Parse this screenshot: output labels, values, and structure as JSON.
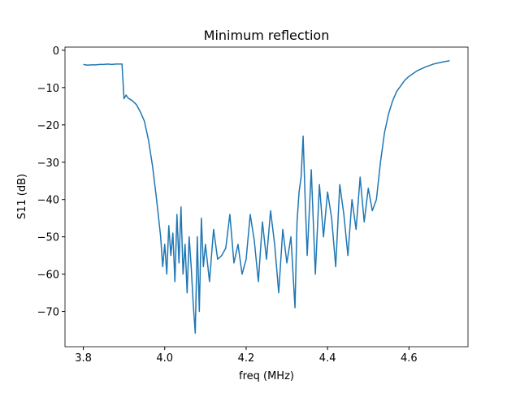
{
  "chart_data": {
    "type": "line",
    "title": "Minimum reflection",
    "x_label": "freq (MHz)",
    "y_label": "S11 (dB)",
    "xlim": [
      3.755,
      4.745
    ],
    "ylim": [
      -79.45,
      0.85
    ],
    "xticks": [
      3.8,
      {
        "value": 4.0,
        "label": "4.0"
      },
      4.2,
      4.4,
      4.6
    ],
    "yticks": [
      0,
      {
        "value": -10,
        "label": "−10"
      },
      {
        "value": -20,
        "label": "−20"
      },
      {
        "value": -30,
        "label": "−30"
      },
      {
        "value": -40,
        "label": "−40"
      },
      {
        "value": -50,
        "label": "−50"
      },
      {
        "value": -60,
        "label": "−60"
      },
      {
        "value": -70,
        "label": "−70"
      }
    ],
    "grid": false,
    "series": [
      {
        "color": "#1f77b4",
        "x": [
          3.8,
          3.81,
          3.82,
          3.83,
          3.84,
          3.85,
          3.86,
          3.87,
          3.88,
          3.895,
          3.9,
          3.905,
          3.91,
          3.92,
          3.93,
          3.94,
          3.95,
          3.96,
          3.97,
          3.98,
          3.99,
          3.995,
          4.0,
          4.005,
          4.01,
          4.015,
          4.02,
          4.025,
          4.03,
          4.035,
          4.04,
          4.045,
          4.05,
          4.055,
          4.06,
          4.065,
          4.07,
          4.075,
          4.08,
          4.085,
          4.09,
          4.095,
          4.1,
          4.11,
          4.12,
          4.13,
          4.14,
          4.15,
          4.16,
          4.17,
          4.18,
          4.19,
          4.2,
          4.21,
          4.22,
          4.23,
          4.24,
          4.25,
          4.26,
          4.27,
          4.28,
          4.29,
          4.3,
          4.31,
          4.32,
          4.325,
          4.33,
          4.335,
          4.34,
          4.345,
          4.35,
          4.36,
          4.37,
          4.38,
          4.39,
          4.4,
          4.41,
          4.42,
          4.43,
          4.44,
          4.45,
          4.46,
          4.47,
          4.48,
          4.49,
          4.5,
          4.51,
          4.52,
          4.53,
          4.54,
          4.55,
          4.56,
          4.57,
          4.58,
          4.59,
          4.6,
          4.62,
          4.64,
          4.66,
          4.68,
          4.7
        ],
        "values": [
          -3.8,
          -4.0,
          -3.9,
          -3.9,
          -3.8,
          -3.8,
          -3.7,
          -3.8,
          -3.7,
          -3.7,
          -13.0,
          -12.0,
          -12.8,
          -13.5,
          -14.5,
          -16.5,
          -19.0,
          -24,
          -31,
          -40,
          -50,
          -58,
          -52,
          -60,
          -47,
          -55,
          -49,
          -62,
          -44,
          -57,
          -42,
          -60,
          -52,
          -65,
          -50,
          -58,
          -68,
          -75.8,
          -50,
          -70,
          -45,
          -58,
          -52,
          -62,
          -48,
          -56,
          -55,
          -53,
          -44,
          -57,
          -52,
          -60,
          -56,
          -44,
          -51,
          -62,
          -46,
          -56,
          -43,
          -52,
          -65,
          -48,
          -57,
          -50,
          -69,
          -46,
          -38,
          -34,
          -23,
          -40,
          -55,
          -32,
          -60,
          -36,
          -50,
          -38,
          -45,
          -58,
          -36,
          -44,
          -55,
          -40,
          -48,
          -34,
          -46,
          -37,
          -43,
          -40,
          -30,
          -22,
          -17,
          -13.5,
          -11,
          -9.5,
          -8,
          -7,
          -5.5,
          -4.5,
          -3.7,
          -3.2,
          -2.8
        ]
      }
    ]
  }
}
